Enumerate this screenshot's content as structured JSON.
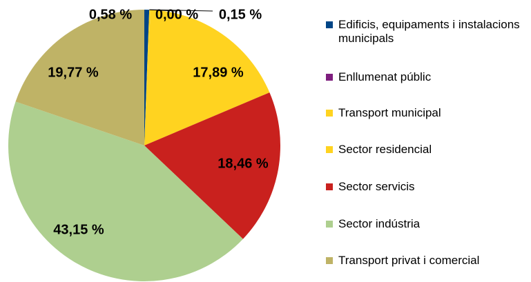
{
  "chart_data": {
    "type": "pie",
    "categories": [
      "Edificis, equipaments i insta­lacions municipals",
      "Enllumenat públic",
      "Transport municipal",
      "Sector residencial",
      "Sector servicis",
      "Sector indústria",
      "Transport privat i comercial"
    ],
    "values": [
      0.58,
      0.0,
      0.15,
      17.89,
      18.46,
      43.15,
      19.77
    ],
    "value_labels": [
      "0,58 %",
      "0,00 %",
      "0,15 %",
      "17,89 %",
      "18,46 %",
      "43,15 %",
      "19,77 %"
    ],
    "colors": [
      "#004586",
      "#7e1e7e",
      "#ffd320",
      "#ffd320",
      "#c9211e",
      "#aecf8f",
      "#bfb366"
    ],
    "legend": "right"
  }
}
